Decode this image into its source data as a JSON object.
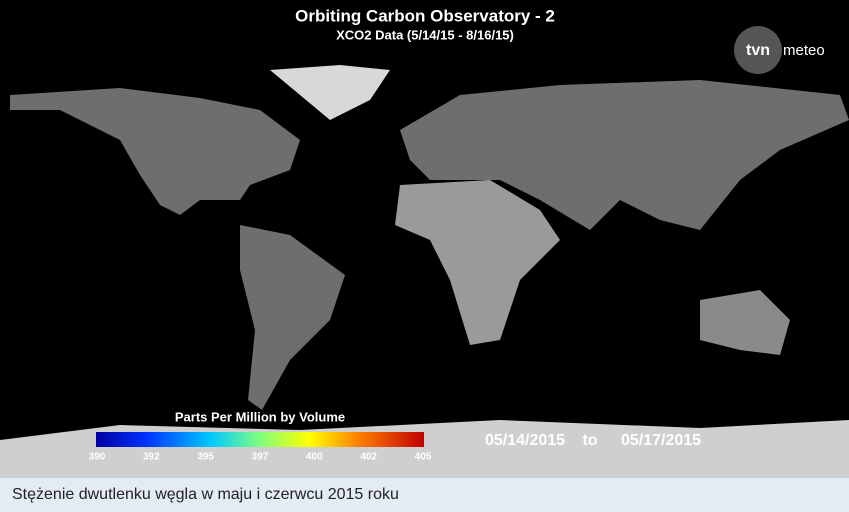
{
  "header": {
    "title": "Orbiting Carbon Observatory - 2",
    "subtitle": "XCO2 Data (5/14/15 - 8/16/15)"
  },
  "logo": {
    "mark": "tvn",
    "text": "meteo"
  },
  "colorbar": {
    "label": "Parts Per Million by Volume",
    "ticks": [
      390,
      392,
      395,
      397,
      400,
      402,
      405
    ]
  },
  "dates": {
    "start": "05/14/2015",
    "separator": "to",
    "end": "05/17/2015"
  },
  "caption": "Stężenie dwutlenku węgla w maju i czerwcu 2015 roku"
}
